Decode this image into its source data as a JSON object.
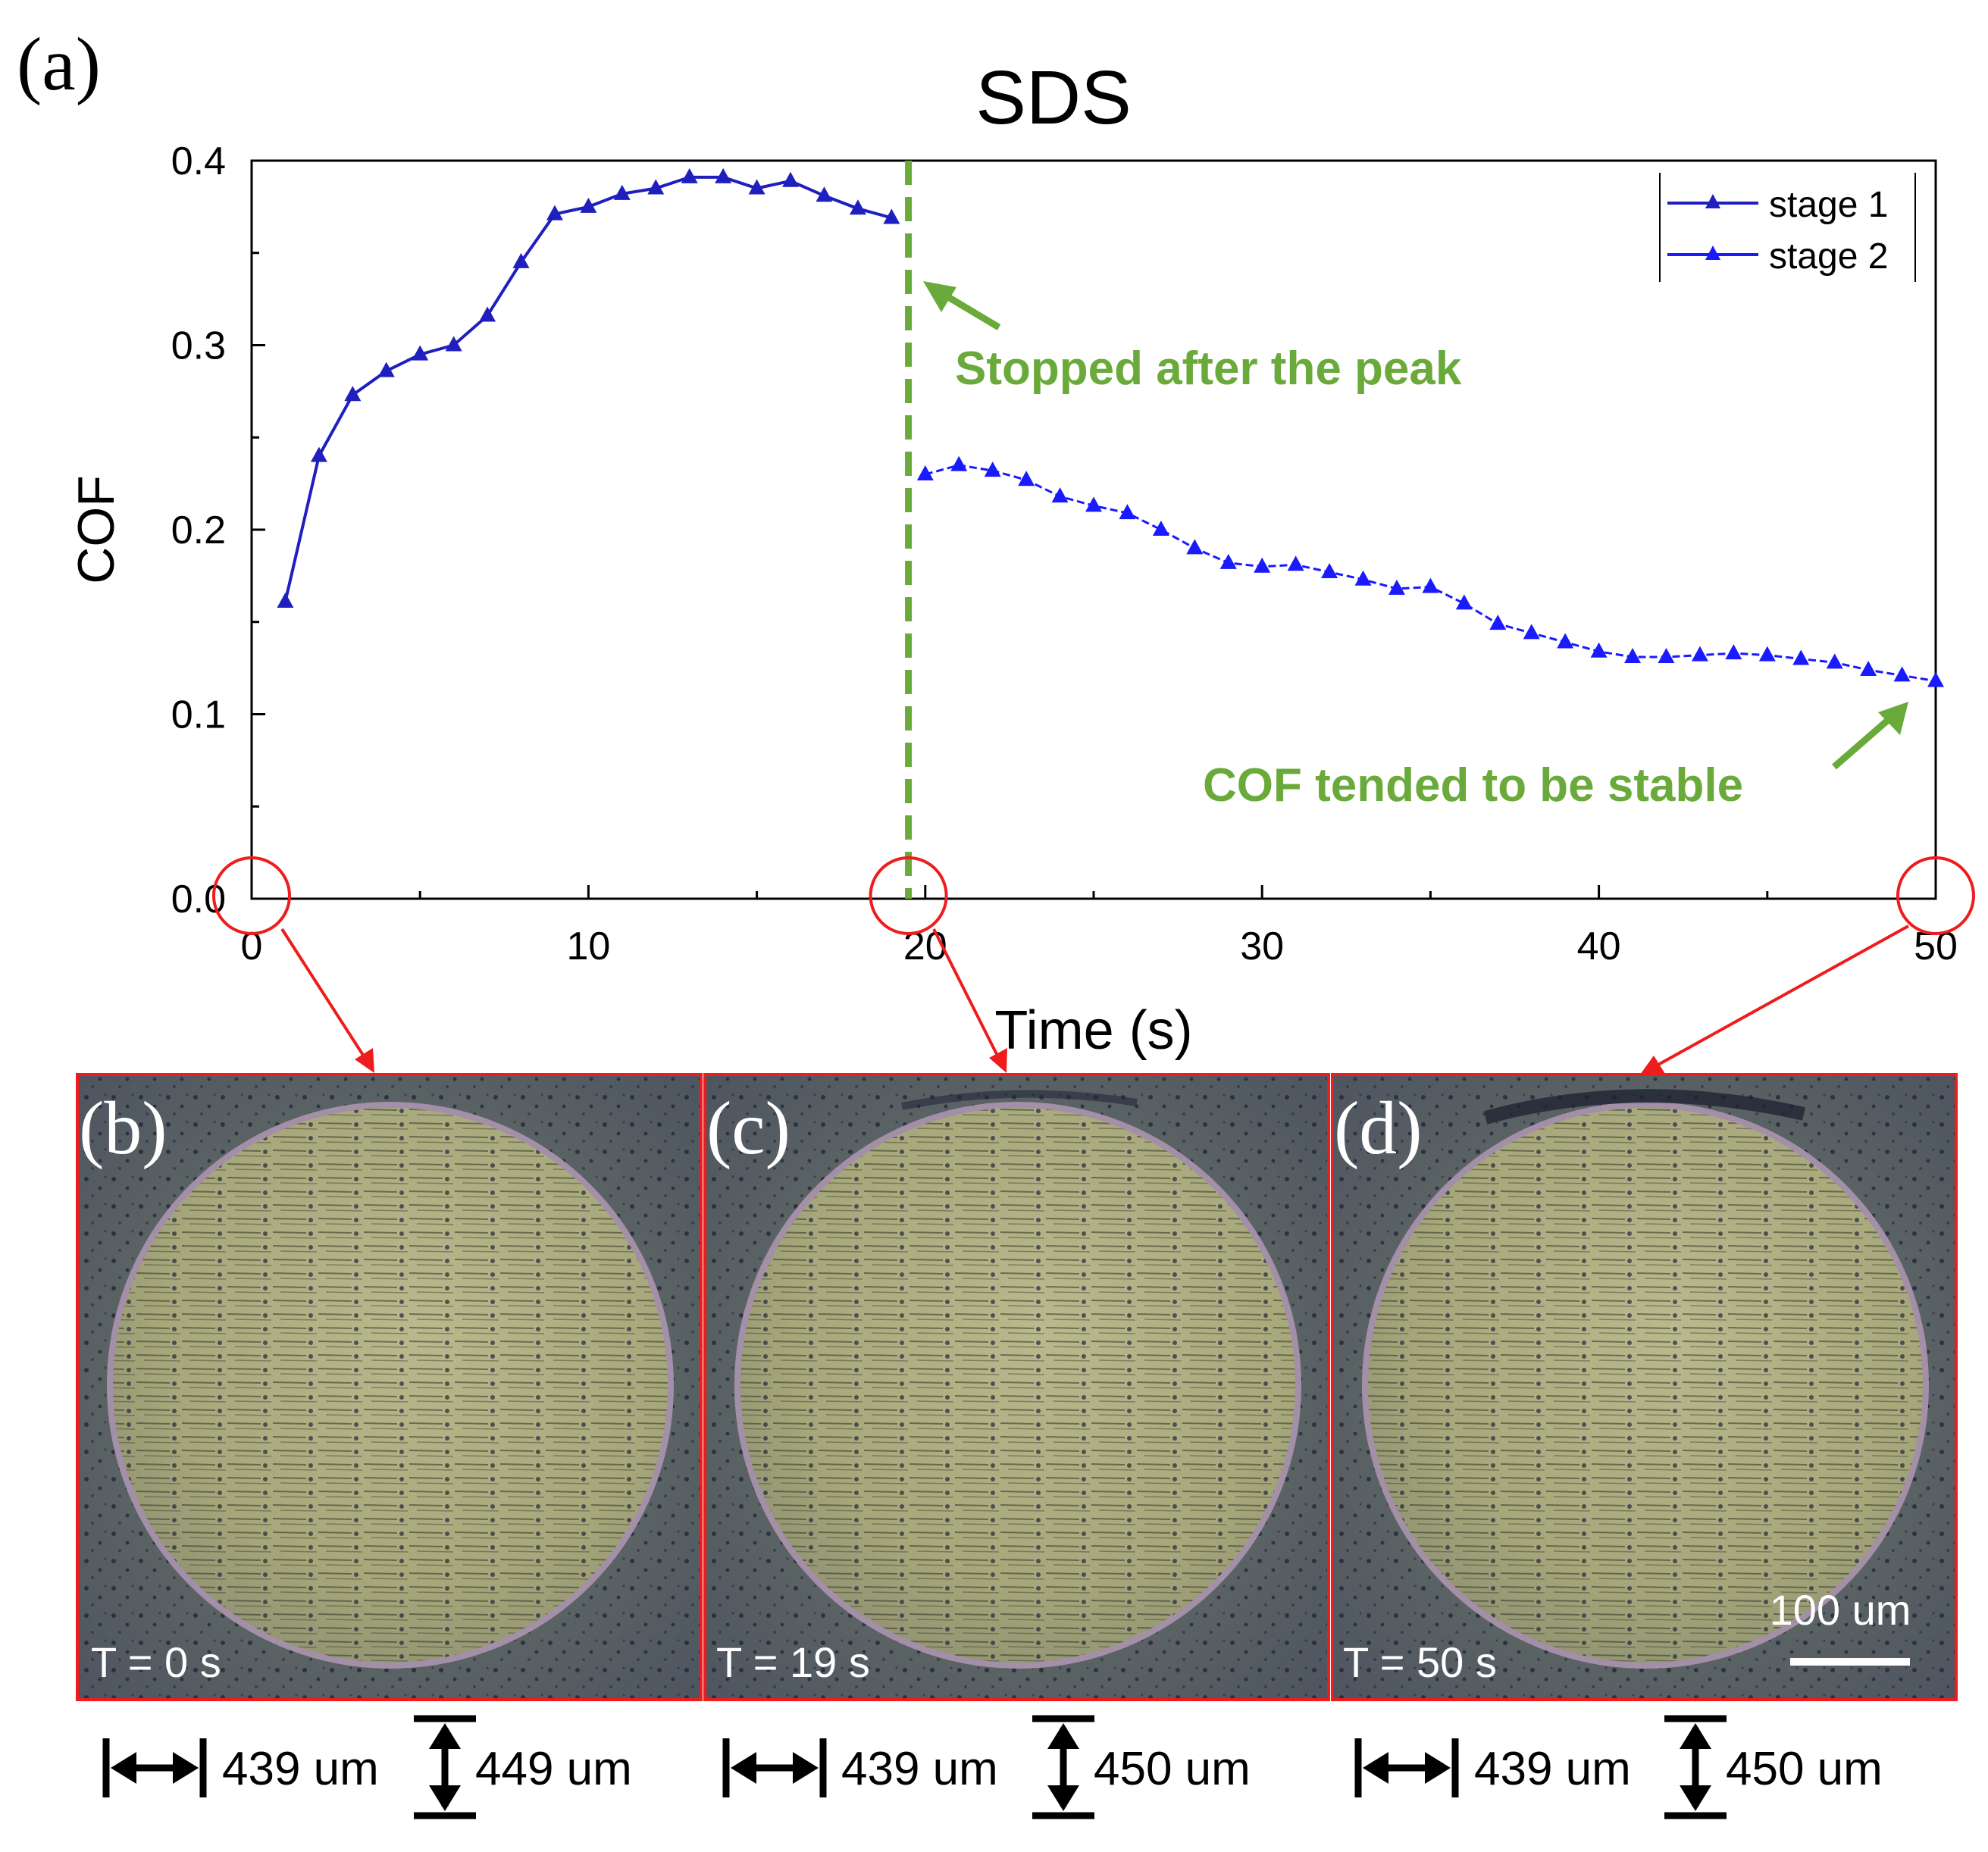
{
  "figure": {
    "panel_a_label": "(a)",
    "panels": [
      {
        "label": "(b)",
        "time_label": "T = 0 s",
        "width_value": "439 um",
        "height_value": "449 um"
      },
      {
        "label": "(c)",
        "time_label": "T = 19 s",
        "width_value": "439 um",
        "height_value": "450 um"
      },
      {
        "label": "(d)",
        "time_label": "T = 50 s",
        "width_value": "439 um",
        "height_value": "450 um",
        "scale_bar": "100 um"
      }
    ]
  },
  "colors": {
    "series_stage1": "#1f1fbf",
    "series_stage2": "#1a1aff",
    "annotation": "#6aaa3a",
    "highlight": "#ee1c1c",
    "axis": "#000000"
  },
  "chart_data": {
    "type": "line",
    "title": "SDS",
    "xlabel": "Time (s)",
    "ylabel": "COF",
    "xlim": [
      0,
      50
    ],
    "ylim": [
      0,
      0.4
    ],
    "xticks": [
      0,
      10,
      20,
      30,
      40,
      50
    ],
    "xtick_labels": [
      "0",
      "10",
      "20",
      "30",
      "40",
      "50"
    ],
    "yticks": [
      0.0,
      0.1,
      0.2,
      0.3,
      0.4
    ],
    "ytick_labels": [
      "0.0",
      "0.1",
      "0.2",
      "0.3",
      "0.4"
    ],
    "legend_position": "top-right",
    "series": [
      {
        "name": "stage 1",
        "marker": "triangle",
        "x": [
          1,
          2,
          3,
          4,
          5,
          6,
          7,
          8,
          9,
          10,
          11,
          12,
          13,
          14,
          15,
          16,
          17,
          18,
          19
        ],
        "y": [
          0.161,
          0.24,
          0.273,
          0.286,
          0.295,
          0.3,
          0.316,
          0.345,
          0.371,
          0.375,
          0.382,
          0.385,
          0.391,
          0.391,
          0.385,
          0.389,
          0.381,
          0.374,
          0.369
        ]
      },
      {
        "name": "stage 2",
        "marker": "triangle",
        "x": [
          20,
          21,
          22,
          23,
          24,
          25,
          26,
          27,
          28,
          29,
          30,
          31,
          32,
          33,
          34,
          35,
          36,
          37,
          38,
          39,
          40,
          41,
          42,
          43,
          44,
          45,
          46,
          47,
          48,
          49,
          50
        ],
        "y": [
          0.23,
          0.235,
          0.232,
          0.227,
          0.218,
          0.213,
          0.209,
          0.2,
          0.19,
          0.182,
          0.18,
          0.181,
          0.177,
          0.173,
          0.168,
          0.169,
          0.16,
          0.149,
          0.144,
          0.139,
          0.134,
          0.131,
          0.131,
          0.132,
          0.133,
          0.132,
          0.13,
          0.128,
          0.124,
          0.121,
          0.118
        ]
      }
    ],
    "vline": {
      "x": 19.5,
      "style": "dashed"
    },
    "annotations": [
      {
        "text": "Stopped after the peak"
      },
      {
        "text": "COF tended to be stable"
      }
    ],
    "highlight_circles_x": [
      0,
      19.5,
      50
    ]
  }
}
